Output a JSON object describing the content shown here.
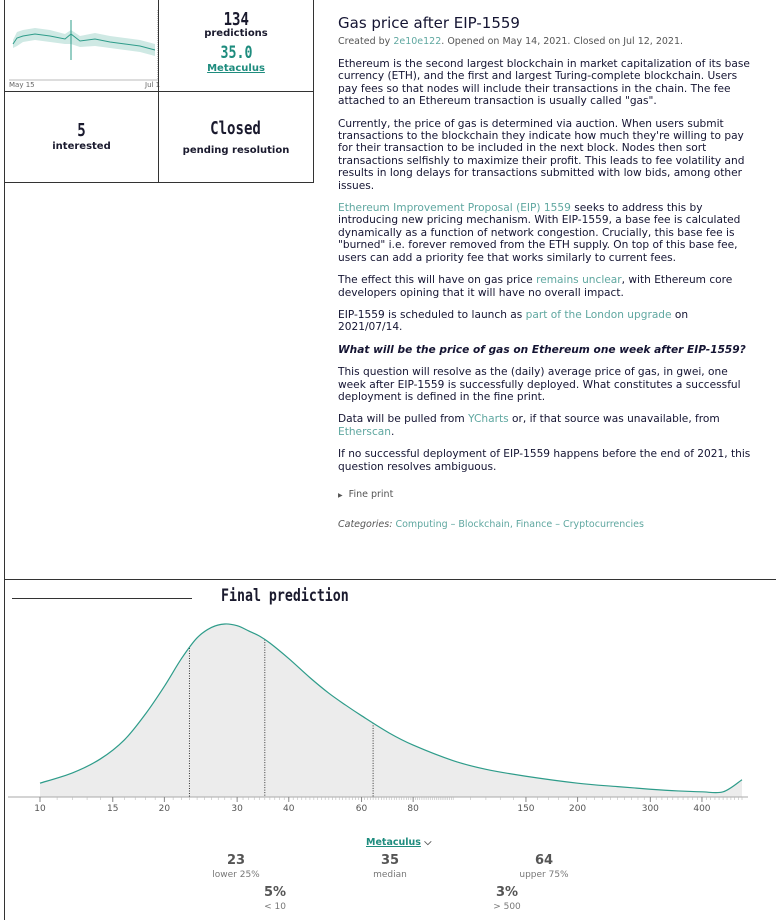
{
  "stats": {
    "predictions_count": "134",
    "predictions_label": "predictions",
    "community_value": "35.0",
    "community_label": "Metaculus",
    "interested_count": "5",
    "interested_label": "interested",
    "status": "Closed",
    "status_sub": "pending resolution",
    "sparkline_start": "May 15",
    "sparkline_end": "Jul 12"
  },
  "question": {
    "title": "Gas price after EIP-1559",
    "meta_created_prefix": "Created by",
    "author": "2e10e122",
    "meta_rest": ". Opened on May 14, 2021. Closed on Jul 12, 2021.",
    "p1": "Ethereum is the second largest blockchain in market capitalization of its base currency (ETH), and the first and largest Turing-complete blockchain. Users pay fees so that nodes will include their transactions in the chain. The fee attached to an Ethereum transaction is usually called \"gas\".",
    "p2": "Currently, the price of gas is determined via auction. When users submit transactions to the blockchain they indicate how much they're willing to pay for their transaction to be included in the next block. Nodes then sort transactions selfishly to maximize their profit. This leads to fee volatility and results in long delays for transactions submitted with low bids, among other issues.",
    "p3_link": "Ethereum Improvement Proposal (EIP) 1559",
    "p3_rest": " seeks to address this by introducing new pricing mechanism. With EIP-1559, a base fee is calculated dynamically as a function of network congestion. Crucially, this base fee is \"burned\" i.e. forever removed from the ETH supply. On top of this base fee, users can add a priority fee that works similarly to current fees.",
    "p4_pre": "The effect this will have on gas price ",
    "p4_link": "remains unclear",
    "p4_post": ", with Ethereum core developers opining that it will have no overall impact.",
    "p5_pre": "EIP-1559 is scheduled to launch as ",
    "p5_link": "part of the London upgrade",
    "p5_post": " on 2021/07/14.",
    "p6": "What will be the price of gas on Ethereum one week after EIP-1559?",
    "p7": "This question will resolve as the (daily) average price of gas, in gwei, one week after EIP-1559 is successfully deployed. What constitutes a successful deployment is defined in the fine print.",
    "p8_pre": "Data will be pulled from ",
    "p8_link1": "YCharts",
    "p8_mid": " or, if that source was unavailable, from ",
    "p8_link2": "Etherscan",
    "p8_post": ".",
    "p9": "If no successful deployment of EIP-1559 happens before the end of 2021, this question resolves ambiguous.",
    "fine_print": "Fine print",
    "categories_label": "Categories:",
    "categories": "Computing – Blockchain, Finance – Cryptocurrencies"
  },
  "final": {
    "heading": "Final prediction",
    "source_label": "Metaculus",
    "lower_val": "23",
    "lower_lbl": "lower 25%",
    "median_val": "35",
    "median_lbl": "median",
    "upper_val": "64",
    "upper_lbl": "upper 75%",
    "below_val": "5%",
    "below_lbl": "< 10",
    "above_val": "3%",
    "above_lbl": "> 500"
  },
  "chart_data": {
    "type": "area",
    "x_scale": "log",
    "xlim": [
      10,
      500
    ],
    "tick_labels": [
      "10",
      "15",
      "20",
      "30",
      "40",
      "60",
      "80",
      "150",
      "200",
      "300",
      "400"
    ],
    "tick_values": [
      10,
      15,
      20,
      30,
      40,
      60,
      80,
      150,
      200,
      300,
      400
    ],
    "density_x": [
      10,
      12,
      14,
      16,
      18,
      20,
      22,
      24,
      26,
      28,
      30,
      32,
      34,
      36,
      40,
      45,
      50,
      55,
      60,
      70,
      80,
      100,
      120,
      150,
      200,
      250,
      300,
      350,
      400,
      450,
      500
    ],
    "density_y": [
      0.08,
      0.14,
      0.22,
      0.33,
      0.48,
      0.64,
      0.8,
      0.92,
      0.98,
      1.0,
      0.99,
      0.96,
      0.93,
      0.89,
      0.8,
      0.69,
      0.6,
      0.53,
      0.47,
      0.37,
      0.3,
      0.21,
      0.16,
      0.12,
      0.08,
      0.06,
      0.045,
      0.035,
      0.03,
      0.03,
      0.1
    ],
    "quartiles": [
      23,
      35,
      64
    ],
    "colors": {
      "line": "#2e9c8a",
      "fill": "#ececec"
    }
  }
}
